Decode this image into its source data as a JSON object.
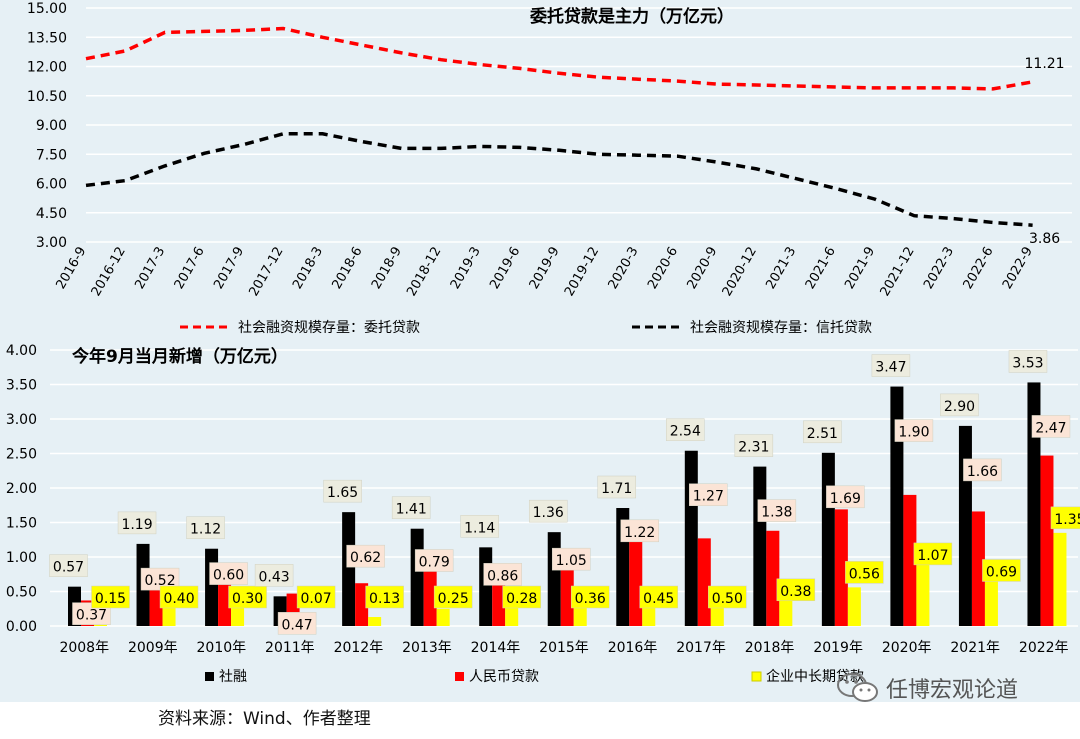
{
  "chart_data": [
    {
      "type": "line",
      "title": "委托贷款是主力（万亿元）",
      "x": [
        "2016-9",
        "2016-12",
        "2017-3",
        "2017-6",
        "2017-9",
        "2017-12",
        "2018-3",
        "2018-6",
        "2018-9",
        "2018-12",
        "2019-3",
        "2019-6",
        "2019-9",
        "2019-12",
        "2020-3",
        "2020-6",
        "2020-9",
        "2020-12",
        "2021-3",
        "2021-6",
        "2021-9",
        "2021-12",
        "2022-3",
        "2022-6",
        "2022-9"
      ],
      "ylim": [
        3.0,
        15.0
      ],
      "yticks": [
        "3.00",
        "4.50",
        "6.00",
        "7.50",
        "9.00",
        "10.50",
        "12.00",
        "13.50",
        "15.00"
      ],
      "grid": true,
      "legend_position": "bottom",
      "series": [
        {
          "name": "社会融资规模存量：委托贷款",
          "color": "#ff0000",
          "style": "dashed",
          "values": [
            12.4,
            12.8,
            13.75,
            13.8,
            13.85,
            13.95,
            13.5,
            13.1,
            12.7,
            12.35,
            12.1,
            11.9,
            11.65,
            11.45,
            11.35,
            11.25,
            11.1,
            11.05,
            11.0,
            10.95,
            10.9,
            10.9,
            10.9,
            10.85,
            11.21
          ],
          "end_label": "11.21"
        },
        {
          "name": "社会融资规模存量：信托贷款",
          "color": "#000000",
          "style": "dashed",
          "values": [
            5.9,
            6.15,
            6.9,
            7.55,
            8.0,
            8.55,
            8.55,
            8.15,
            7.8,
            7.8,
            7.9,
            7.85,
            7.7,
            7.5,
            7.45,
            7.4,
            7.1,
            6.75,
            6.25,
            5.75,
            5.2,
            4.35,
            4.2,
            4.0,
            3.86
          ],
          "end_label": "3.86"
        }
      ]
    },
    {
      "type": "bar",
      "title": "今年9月当月新增（万亿元）",
      "categories": [
        "2008年",
        "2009年",
        "2010年",
        "2011年",
        "2012年",
        "2013年",
        "2014年",
        "2015年",
        "2016年",
        "2017年",
        "2018年",
        "2019年",
        "2020年",
        "2021年",
        "2022年"
      ],
      "ylim": [
        0,
        4.0
      ],
      "yticks": [
        "0.00",
        "0.50",
        "1.00",
        "1.50",
        "2.00",
        "2.50",
        "3.00",
        "3.50",
        "4.00"
      ],
      "grid": true,
      "legend_position": "bottom",
      "series": [
        {
          "name": "社融",
          "color": "#000000",
          "values": [
            0.57,
            1.19,
            1.12,
            0.43,
            1.65,
            1.41,
            1.14,
            1.36,
            1.71,
            2.54,
            2.31,
            2.51,
            3.47,
            2.9,
            3.53
          ],
          "labels": [
            "0.57",
            "1.19",
            "1.12",
            "0.43",
            "1.65",
            "1.41",
            "1.14",
            "1.36",
            "1.71",
            "2.54",
            "2.31",
            "2.51",
            "3.47",
            "2.90",
            "3.53"
          ]
        },
        {
          "name": "人民币贷款",
          "color": "#ff0000",
          "values": [
            0.37,
            0.52,
            0.6,
            0.47,
            0.62,
            0.79,
            0.86,
            1.05,
            1.22,
            1.27,
            1.38,
            1.69,
            1.9,
            1.66,
            2.47
          ],
          "labels": [
            "0.37",
            "0.52",
            "0.60",
            "0.47",
            "0.62",
            "0.79",
            "0.86",
            "1.05",
            "1.22",
            "1.27",
            "1.38",
            "1.69",
            "1.90",
            "1.66",
            "2.47"
          ]
        },
        {
          "name": "企业中长期贷款",
          "color": "#ffff00",
          "values": [
            0.15,
            0.4,
            0.3,
            0.07,
            0.13,
            0.25,
            0.28,
            0.36,
            0.45,
            0.5,
            0.38,
            0.56,
            1.07,
            0.69,
            1.35
          ],
          "labels": [
            "0.15",
            "0.40",
            "0.30",
            "0.07",
            "0.13",
            "0.25",
            "0.28",
            "0.36",
            "0.45",
            "0.50",
            "0.38",
            "0.56",
            "1.07",
            "0.69",
            "1.35"
          ]
        }
      ]
    }
  ],
  "source_note": "资料来源：Wind、作者整理",
  "watermark": {
    "text": "任博宏观论道",
    "icon": "wechat-icon"
  },
  "colors": {
    "panel_background": "#e6f0f5",
    "grid": "#ffffff"
  }
}
